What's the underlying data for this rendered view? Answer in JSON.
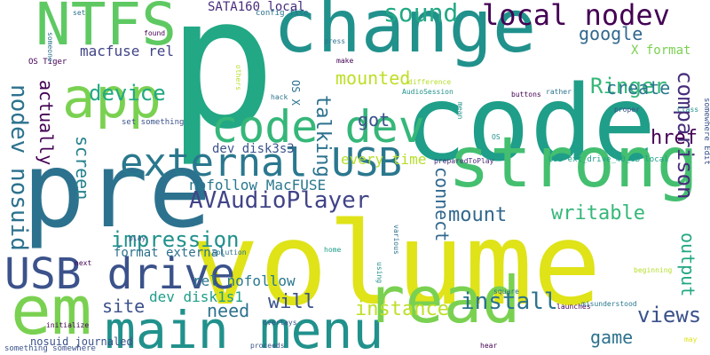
{
  "words": [
    {
      "text": "volume",
      "color": "#dfe318",
      "vertical": false
    },
    {
      "text": "p",
      "color": "#22a884",
      "vertical": false
    },
    {
      "text": "code",
      "color": "#1f9e89",
      "vertical": false
    },
    {
      "text": "pre",
      "color": "#2c728e",
      "vertical": false
    },
    {
      "text": "change",
      "color": "#21918c",
      "vertical": false
    },
    {
      "text": "strong",
      "color": "#44bf70",
      "vertical": false
    },
    {
      "text": "em",
      "color": "#7ad151",
      "vertical": false
    },
    {
      "text": "main menu",
      "color": "#21918c",
      "vertical": false
    },
    {
      "text": "app",
      "color": "#7ad151",
      "vertical": false
    },
    {
      "text": "read",
      "color": "#7ad151",
      "vertical": false
    },
    {
      "text": "NTFS",
      "color": "#5ec962",
      "vertical": false
    },
    {
      "text": "code dev",
      "color": "#35b779",
      "vertical": false
    },
    {
      "text": "external USB",
      "color": "#2a788e",
      "vertical": false
    },
    {
      "text": "USB drive",
      "color": "#3b528b",
      "vertical": false
    },
    {
      "text": "local nodev",
      "color": "#440154",
      "vertical": false
    },
    {
      "text": "AVAudioPlayer",
      "color": "#414487",
      "vertical": false
    },
    {
      "text": "nodev nosuid",
      "color": "#2c728e",
      "vertical": true
    },
    {
      "text": "sound",
      "color": "#22a884",
      "vertical": false
    },
    {
      "text": "comparison",
      "color": "#472d7b",
      "vertical": true
    },
    {
      "text": "Ringer",
      "color": "#35b779",
      "vertical": false
    },
    {
      "text": "device",
      "color": "#22a884",
      "vertical": false
    },
    {
      "text": "impression",
      "color": "#21918c",
      "vertical": false
    },
    {
      "text": "mounted",
      "color": "#bddf26",
      "vertical": false
    },
    {
      "text": "href",
      "color": "#440154",
      "vertical": false
    },
    {
      "text": "views",
      "color": "#3b528b",
      "vertical": false
    },
    {
      "text": "instance",
      "color": "#bddf26",
      "vertical": false
    },
    {
      "text": "install",
      "color": "#2c728e",
      "vertical": false
    },
    {
      "text": "writable",
      "color": "#35b779",
      "vertical": false
    },
    {
      "text": "mount",
      "color": "#31688e",
      "vertical": false
    },
    {
      "text": "create",
      "color": "#2a788e",
      "vertical": false
    },
    {
      "text": "google",
      "color": "#31688e",
      "vertical": false
    },
    {
      "text": "got",
      "color": "#3b528b",
      "vertical": false
    },
    {
      "text": "actually",
      "color": "#440154",
      "vertical": true
    },
    {
      "text": "screen",
      "color": "#26828e",
      "vertical": true
    },
    {
      "text": "talking",
      "color": "#2c728e",
      "vertical": true
    },
    {
      "text": "connect",
      "color": "#31688e",
      "vertical": true
    },
    {
      "text": "output",
      "color": "#22a884",
      "vertical": true
    },
    {
      "text": "will",
      "color": "#3b528b",
      "vertical": false
    },
    {
      "text": "need",
      "color": "#2c728e",
      "vertical": false
    },
    {
      "text": "site",
      "color": "#3b528b",
      "vertical": false
    },
    {
      "text": "game",
      "color": "#2c728e",
      "vertical": false
    },
    {
      "text": "every time",
      "color": "#b5de2b",
      "vertical": false
    },
    {
      "text": "nofollow MacFUSE",
      "color": "#2a788e",
      "vertical": false
    },
    {
      "text": "rel nofollow",
      "color": "#2a788e",
      "vertical": false
    },
    {
      "text": "dev disk1s1",
      "color": "#1f9e89",
      "vertical": false
    },
    {
      "text": "macfuse rel",
      "color": "#414487",
      "vertical": false
    },
    {
      "text": "X format",
      "color": "#7ad151",
      "vertical": false
    },
    {
      "text": "format external",
      "color": "#2c728e",
      "vertical": false
    },
    {
      "text": "SATA160 local",
      "color": "#472d7b",
      "vertical": false
    },
    {
      "text": "dev disk3s3",
      "color": "#3b528b",
      "vertical": false
    },
    {
      "text": "nosuid journaled",
      "color": "#3b528b",
      "vertical": false
    },
    {
      "text": "OS X",
      "color": "#2c728e",
      "vertical": true
    },
    {
      "text": "config file",
      "color": "#2c728e",
      "vertical": false
    },
    {
      "text": "USB ext_drive_40_GB local",
      "color": "#1f9e89",
      "vertical": false
    },
    {
      "text": "preparedToPlay",
      "color": "#482878",
      "vertical": false
    },
    {
      "text": "AudioSession",
      "color": "#21918c",
      "vertical": false
    },
    {
      "text": "OS Tiger",
      "color": "#440154",
      "vertical": false
    },
    {
      "text": "set something",
      "color": "#3b528b",
      "vertical": false
    },
    {
      "text": "something somewhere",
      "color": "#3b528b",
      "vertical": false
    },
    {
      "text": "somewhere Edit",
      "color": "#3b528b",
      "vertical": true
    },
    {
      "text": "initialize",
      "color": "#440154",
      "vertical": false
    },
    {
      "text": "press",
      "color": "#2c728e",
      "vertical": false
    },
    {
      "text": "found",
      "color": "#440154",
      "vertical": false
    },
    {
      "text": "make",
      "color": "#440154",
      "vertical": false
    },
    {
      "text": "hack",
      "color": "#2c728e",
      "vertical": false
    },
    {
      "text": "difference",
      "color": "#b5de2b",
      "vertical": false
    },
    {
      "text": "rather",
      "color": "#2c728e",
      "vertical": false
    },
    {
      "text": "buttons",
      "color": "#440154",
      "vertical": false
    },
    {
      "text": "proper",
      "color": "#3b528b",
      "vertical": false
    },
    {
      "text": "Class",
      "color": "#21918c",
      "vertical": false
    },
    {
      "text": "someone",
      "color": "#2c728e",
      "vertical": true
    },
    {
      "text": "others",
      "color": "#b5de2b",
      "vertical": true
    },
    {
      "text": "mean",
      "color": "#21918c",
      "vertical": true
    },
    {
      "text": "OS",
      "color": "#21918c",
      "vertical": false
    },
    {
      "text": "set",
      "color": "#2c728e",
      "vertical": false
    },
    {
      "text": "play",
      "color": "#3b528b",
      "vertical": false
    },
    {
      "text": "solution",
      "color": "#2c728e",
      "vertical": false
    },
    {
      "text": "various",
      "color": "#2c728e",
      "vertical": true
    },
    {
      "text": "home",
      "color": "#1f9e89",
      "vertical": false
    },
    {
      "text": "using",
      "color": "#21918c",
      "vertical": true
    },
    {
      "text": "square",
      "color": "#2c728e",
      "vertical": false
    },
    {
      "text": "beginning",
      "color": "#b5de2b",
      "vertical": false
    },
    {
      "text": "next",
      "color": "#440154",
      "vertical": false
    },
    {
      "text": "launches",
      "color": "#440154",
      "vertical": false
    },
    {
      "text": "misunderstood",
      "color": "#2a788e",
      "vertical": false
    },
    {
      "text": "overlays",
      "color": "#3b528b",
      "vertical": false
    },
    {
      "text": "proceeds",
      "color": "#3b528b",
      "vertical": false
    },
    {
      "text": "hear",
      "color": "#440154",
      "vertical": false
    },
    {
      "text": "may",
      "color": "#dfe318",
      "vertical": false
    }
  ]
}
